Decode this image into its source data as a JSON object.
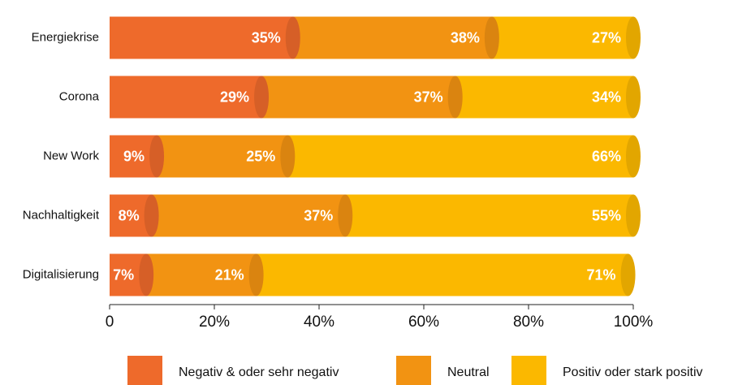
{
  "chart_data": {
    "type": "stacked-bar-horizontal",
    "categories": [
      "Energiekrise",
      "Corona",
      "New Work",
      "Nachhaltigkeit",
      "Digitalisierung"
    ],
    "series": [
      {
        "name": "Negativ & oder sehr negativ",
        "color": "#ee6a2b",
        "values": [
          35,
          29,
          9,
          8,
          7
        ],
        "value_labels": [
          "35%",
          "29%",
          "9%",
          "8%",
          "7%"
        ]
      },
      {
        "name": "Neutral",
        "color": "#f29312",
        "values": [
          38,
          37,
          25,
          37,
          21
        ],
        "value_labels": [
          "38%",
          "37%",
          "25%",
          "37%",
          "21%"
        ]
      },
      {
        "name": "Positiv oder stark positiv",
        "color": "#fbb800",
        "values": [
          27,
          34,
          66,
          55,
          71
        ],
        "value_labels": [
          "27%",
          "34%",
          "66%",
          "55%",
          "71%"
        ]
      }
    ],
    "xlim": [
      0,
      100
    ],
    "xticks": [
      0,
      {
        "value": 20,
        "label": "20%"
      },
      {
        "value": 40,
        "label": "40%"
      },
      {
        "value": 60,
        "label": "60%"
      },
      {
        "value": 80,
        "label": "80%"
      },
      {
        "value": 100,
        "label": "100%"
      }
    ],
    "legend": "bottom"
  }
}
